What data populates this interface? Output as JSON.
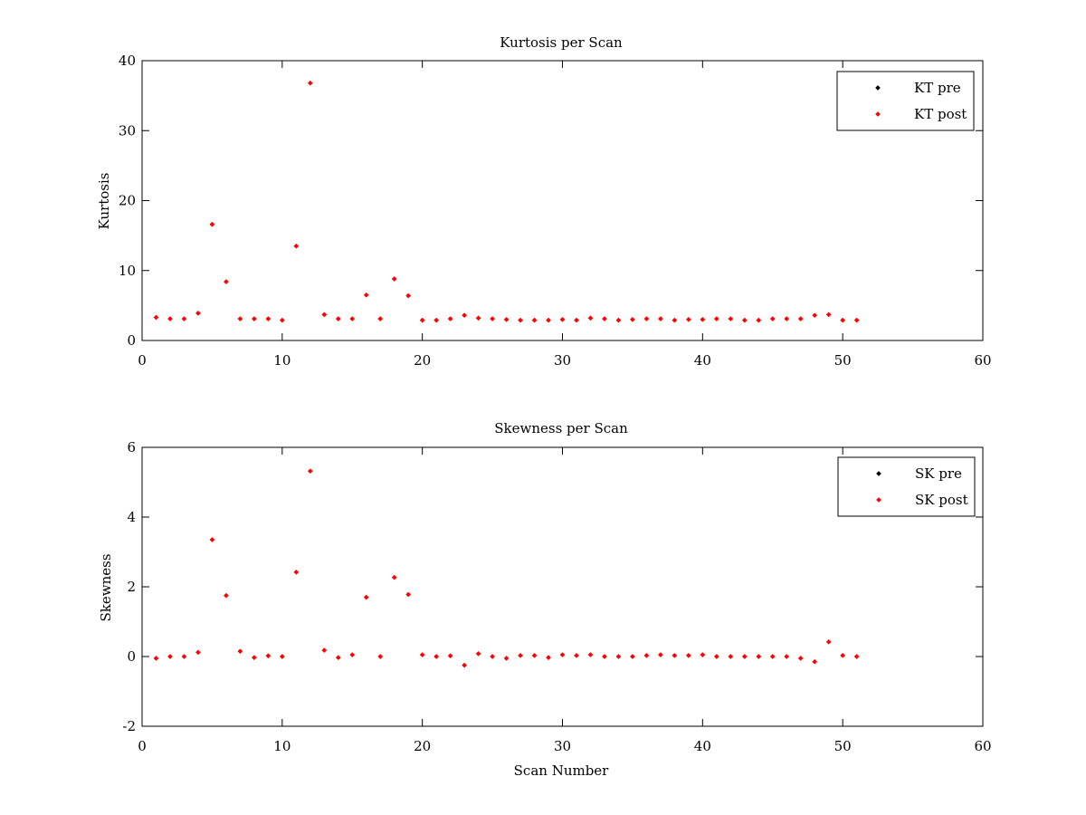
{
  "chart_data": [
    {
      "type": "scatter",
      "title": "Kurtosis per Scan",
      "xlabel": "",
      "ylabel": "Kurtosis",
      "xlim": [
        0,
        60
      ],
      "ylim": [
        0,
        40
      ],
      "xticks": [
        0,
        10,
        20,
        30,
        40,
        50,
        60
      ],
      "yticks": [
        0,
        10,
        20,
        30,
        40
      ],
      "grid": false,
      "legend_position": "top-right",
      "series": [
        {
          "name": "KT pre",
          "color": "#000000",
          "x": [],
          "y": []
        },
        {
          "name": "KT post",
          "color": "#ff0000",
          "x": [
            1,
            2,
            3,
            4,
            5,
            6,
            7,
            8,
            9,
            10,
            11,
            12,
            13,
            14,
            15,
            16,
            17,
            18,
            19,
            20,
            21,
            22,
            23,
            24,
            25,
            26,
            27,
            28,
            29,
            30,
            31,
            32,
            33,
            34,
            35,
            36,
            37,
            38,
            39,
            40,
            41,
            42,
            43,
            44,
            45,
            46,
            47,
            48,
            49,
            50,
            51
          ],
          "y": [
            3.3,
            3.1,
            3.1,
            3.9,
            16.6,
            8.4,
            3.1,
            3.1,
            3.1,
            2.9,
            13.5,
            36.8,
            3.7,
            3.1,
            3.1,
            6.5,
            3.1,
            8.8,
            6.4,
            2.9,
            2.9,
            3.1,
            3.6,
            3.2,
            3.1,
            3.0,
            2.9,
            2.9,
            2.9,
            3.0,
            2.9,
            3.2,
            3.1,
            2.9,
            3.0,
            3.1,
            3.1,
            2.9,
            3.0,
            3.0,
            3.1,
            3.1,
            2.9,
            2.9,
            3.1,
            3.1,
            3.1,
            3.6,
            3.7,
            2.9,
            2.9
          ]
        }
      ]
    },
    {
      "type": "scatter",
      "title": "Skewness per Scan",
      "xlabel": "Scan Number",
      "ylabel": "Skewness",
      "xlim": [
        0,
        60
      ],
      "ylim": [
        -2,
        6
      ],
      "xticks": [
        0,
        10,
        20,
        30,
        40,
        50,
        60
      ],
      "yticks": [
        -2,
        0,
        2,
        4,
        6
      ],
      "grid": false,
      "legend_position": "top-right",
      "series": [
        {
          "name": "SK pre",
          "color": "#000000",
          "x": [],
          "y": []
        },
        {
          "name": "SK post",
          "color": "#ff0000",
          "x": [
            1,
            2,
            3,
            4,
            5,
            6,
            7,
            8,
            9,
            10,
            11,
            12,
            13,
            14,
            15,
            16,
            17,
            18,
            19,
            20,
            21,
            22,
            23,
            24,
            25,
            26,
            27,
            28,
            29,
            30,
            31,
            32,
            33,
            34,
            35,
            36,
            37,
            38,
            39,
            40,
            41,
            42,
            43,
            44,
            45,
            46,
            47,
            48,
            49,
            50,
            51
          ],
          "y": [
            -0.05,
            0.0,
            0.0,
            0.12,
            3.35,
            1.75,
            0.15,
            -0.03,
            0.02,
            0.0,
            2.42,
            5.32,
            0.18,
            -0.03,
            0.05,
            1.7,
            0.0,
            2.27,
            1.78,
            0.05,
            0.0,
            0.02,
            -0.25,
            0.08,
            0.0,
            -0.05,
            0.03,
            0.03,
            -0.03,
            0.05,
            0.03,
            0.05,
            0.0,
            0.0,
            0.0,
            0.03,
            0.05,
            0.03,
            0.03,
            0.05,
            0.0,
            0.0,
            0.0,
            0.0,
            0.0,
            0.0,
            -0.05,
            -0.15,
            0.42,
            0.03,
            0.0
          ]
        }
      ]
    }
  ]
}
